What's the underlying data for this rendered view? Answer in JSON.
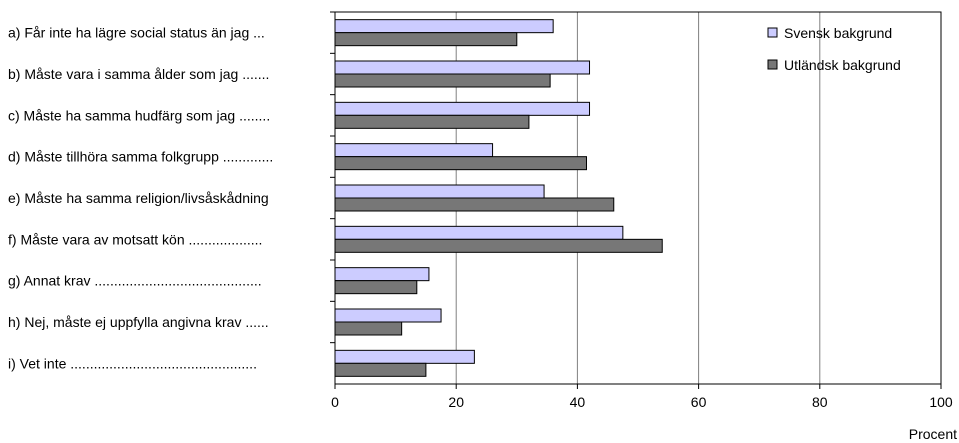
{
  "chart_data": {
    "type": "bar",
    "orientation": "horizontal",
    "categories": [
      "a) Får inte ha lägre social status än jag ...",
      "b) Måste vara i samma ålder som jag .......",
      "c) Måste ha samma hudfärg som jag ........",
      "d) Måste tillhöra samma folkgrupp .............",
      "e) Måste ha samma religion/livsåskådning",
      "f) Måste vara av motsatt kön ...................",
      "g) Annat krav ...........................................",
      "h) Nej, måste ej uppfylla angivna krav ......",
      "i) Vet inte   ................................................"
    ],
    "series": [
      {
        "name": "Svensk bakgrund",
        "values": [
          36,
          42,
          42,
          26,
          34.5,
          47.5,
          15.5,
          17.5,
          23
        ],
        "color": "#ccccff"
      },
      {
        "name": "Utländsk bakgrund",
        "values": [
          30,
          35.5,
          32,
          41.5,
          46,
          54,
          13.5,
          11,
          15
        ],
        "color": "#777777"
      }
    ],
    "xlabel": "Procent",
    "ylabel": "",
    "xlim": [
      0,
      100
    ],
    "xticks": [
      "0",
      "20",
      "40",
      "60",
      "80",
      "100"
    ],
    "grid": "vertical",
    "legend_position": "top-right"
  }
}
